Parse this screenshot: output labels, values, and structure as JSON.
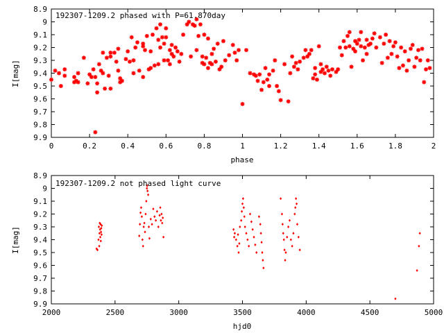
{
  "chart_data": [
    {
      "type": "scatter",
      "title": "192307-1209.2 phased with P=61.870day",
      "xlabel": "phase",
      "ylabel": "I[mag]",
      "xlim": [
        0,
        2
      ],
      "ylim": [
        9.9,
        8.9
      ],
      "y_inverted": true,
      "marker": "star",
      "color": "#ff0000",
      "xticks": [
        "0",
        "0.2",
        "0.4",
        "0.6",
        "0.8",
        "1",
        "1.2",
        "1.4",
        "1.6",
        "1.8",
        "2"
      ],
      "xtick_values": [
        0,
        0.2,
        0.4,
        0.6,
        0.8,
        1,
        1.2,
        1.4,
        1.6,
        1.8,
        2
      ],
      "yticks": [
        "8.9",
        "9",
        "9.1",
        "9.2",
        "9.3",
        "9.4",
        "9.5",
        "9.6",
        "9.7",
        "9.8",
        "9.9"
      ],
      "ytick_values": [
        8.9,
        9.0,
        9.1,
        9.2,
        9.3,
        9.4,
        9.5,
        9.6,
        9.7,
        9.8,
        9.9
      ],
      "points": [
        [
          0.0,
          9.45
        ],
        [
          0.02,
          9.38
        ],
        [
          0.04,
          9.4
        ],
        [
          0.05,
          9.5
        ],
        [
          0.07,
          9.37
        ],
        [
          0.07,
          9.42
        ],
        [
          0.12,
          9.43
        ],
        [
          0.12,
          9.47
        ],
        [
          0.13,
          9.46
        ],
        [
          0.14,
          9.4
        ],
        [
          0.14,
          9.47
        ],
        [
          0.17,
          9.28
        ],
        [
          0.19,
          9.48
        ],
        [
          0.2,
          9.41
        ],
        [
          0.21,
          9.43
        ],
        [
          0.22,
          9.37
        ],
        [
          0.23,
          9.43
        ],
        [
          0.23,
          9.86
        ],
        [
          0.24,
          9.55
        ],
        [
          0.24,
          9.48
        ],
        [
          0.25,
          9.33
        ],
        [
          0.26,
          9.38
        ],
        [
          0.27,
          9.24
        ],
        [
          0.27,
          9.4
        ],
        [
          0.28,
          9.52
        ],
        [
          0.29,
          9.28
        ],
        [
          0.3,
          9.42
        ],
        [
          0.31,
          9.52
        ],
        [
          0.31,
          9.27
        ],
        [
          0.31,
          9.24
        ],
        [
          0.33,
          9.24
        ],
        [
          0.34,
          9.31
        ],
        [
          0.35,
          9.21
        ],
        [
          0.35,
          9.38
        ],
        [
          0.36,
          9.47
        ],
        [
          0.36,
          9.44
        ],
        [
          0.37,
          9.46
        ],
        [
          0.39,
          9.29
        ],
        [
          0.4,
          9.23
        ],
        [
          0.41,
          9.31
        ],
        [
          0.42,
          9.12
        ],
        [
          0.43,
          9.3
        ],
        [
          0.43,
          9.4
        ],
        [
          0.44,
          9.2
        ],
        [
          0.45,
          9.16
        ],
        [
          0.46,
          9.38
        ],
        [
          0.48,
          9.19
        ],
        [
          0.48,
          9.17
        ],
        [
          0.48,
          9.43
        ],
        [
          0.49,
          9.22
        ],
        [
          0.5,
          9.11
        ],
        [
          0.51,
          9.37
        ],
        [
          0.52,
          9.23
        ],
        [
          0.52,
          9.36
        ],
        [
          0.53,
          9.1
        ],
        [
          0.54,
          9.34
        ],
        [
          0.55,
          9.05
        ],
        [
          0.56,
          9.14
        ],
        [
          0.56,
          9.33
        ],
        [
          0.57,
          9.02
        ],
        [
          0.57,
          9.2
        ],
        [
          0.58,
          9.12
        ],
        [
          0.59,
          9.17
        ],
        [
          0.59,
          9.3
        ],
        [
          0.6,
          9.05
        ],
        [
          0.6,
          9.12
        ],
        [
          0.61,
          9.3
        ],
        [
          0.62,
          9.22
        ],
        [
          0.62,
          9.33
        ],
        [
          0.63,
          9.18
        ],
        [
          0.63,
          9.25
        ],
        [
          0.64,
          9.27
        ],
        [
          0.65,
          9.2
        ],
        [
          0.66,
          9.23
        ],
        [
          0.67,
          9.31
        ],
        [
          0.68,
          9.25
        ],
        [
          0.69,
          9.1
        ],
        [
          0.71,
          9.02
        ],
        [
          0.72,
          9.0
        ],
        [
          0.73,
          9.27
        ],
        [
          0.74,
          9.02
        ],
        [
          0.75,
          9.03
        ],
        [
          0.76,
          8.98
        ],
        [
          0.76,
          9.22
        ],
        [
          0.77,
          9.11
        ],
        [
          0.78,
          9.02
        ],
        [
          0.79,
          9.27
        ],
        [
          0.79,
          9.32
        ],
        [
          0.8,
          9.33
        ],
        [
          0.8,
          9.1
        ],
        [
          0.81,
          9.28
        ],
        [
          0.82,
          9.13
        ],
        [
          0.82,
          9.36
        ],
        [
          0.83,
          9.32
        ],
        [
          0.84,
          9.25
        ],
        [
          0.84,
          9.33
        ],
        [
          0.85,
          9.21
        ],
        [
          0.86,
          9.31
        ],
        [
          0.87,
          9.17
        ],
        [
          0.88,
          9.37
        ],
        [
          0.89,
          9.35
        ],
        [
          0.9,
          9.15
        ],
        [
          0.91,
          9.3
        ],
        [
          0.93,
          9.26
        ],
        [
          0.95,
          9.18
        ],
        [
          0.96,
          9.24
        ],
        [
          0.97,
          9.3
        ],
        [
          0.98,
          9.22
        ],
        [
          1.0,
          9.64
        ],
        [
          1.02,
          9.22
        ],
        [
          1.04,
          9.4
        ],
        [
          1.06,
          9.41
        ],
        [
          1.07,
          9.42
        ],
        [
          1.08,
          9.46
        ],
        [
          1.09,
          9.41
        ],
        [
          1.1,
          9.53
        ],
        [
          1.11,
          9.47
        ],
        [
          1.12,
          9.36
        ],
        [
          1.13,
          9.45
        ],
        [
          1.14,
          9.5
        ],
        [
          1.14,
          9.41
        ],
        [
          1.16,
          9.38
        ],
        [
          1.17,
          9.3
        ],
        [
          1.18,
          9.5
        ],
        [
          1.19,
          9.54
        ],
        [
          1.2,
          9.61
        ],
        [
          1.22,
          9.33
        ],
        [
          1.24,
          9.62
        ],
        [
          1.25,
          9.4
        ],
        [
          1.26,
          9.27
        ],
        [
          1.27,
          9.35
        ],
        [
          1.28,
          9.32
        ],
        [
          1.29,
          9.37
        ],
        [
          1.3,
          9.31
        ],
        [
          1.32,
          9.28
        ],
        [
          1.33,
          9.22
        ],
        [
          1.34,
          9.27
        ],
        [
          1.35,
          9.25
        ],
        [
          1.36,
          9.22
        ],
        [
          1.37,
          9.44
        ],
        [
          1.38,
          9.36
        ],
        [
          1.38,
          9.41
        ],
        [
          1.39,
          9.45
        ],
        [
          1.4,
          9.19
        ],
        [
          1.41,
          9.33
        ],
        [
          1.41,
          9.39
        ],
        [
          1.42,
          9.37
        ],
        [
          1.43,
          9.4
        ],
        [
          1.44,
          9.35
        ],
        [
          1.45,
          9.38
        ],
        [
          1.46,
          9.42
        ],
        [
          1.47,
          9.37
        ],
        [
          1.49,
          9.39
        ],
        [
          1.5,
          9.37
        ],
        [
          1.51,
          9.2
        ],
        [
          1.52,
          9.26
        ],
        [
          1.53,
          9.15
        ],
        [
          1.54,
          9.2
        ],
        [
          1.55,
          9.11
        ],
        [
          1.56,
          9.19
        ],
        [
          1.56,
          9.08
        ],
        [
          1.57,
          9.35
        ],
        [
          1.58,
          9.21
        ],
        [
          1.59,
          9.15
        ],
        [
          1.59,
          9.23
        ],
        [
          1.6,
          9.17
        ],
        [
          1.61,
          9.14
        ],
        [
          1.62,
          9.19
        ],
        [
          1.62,
          9.08
        ],
        [
          1.63,
          9.3
        ],
        [
          1.64,
          9.2
        ],
        [
          1.65,
          9.25
        ],
        [
          1.65,
          9.14
        ],
        [
          1.66,
          9.18
        ],
        [
          1.67,
          9.17
        ],
        [
          1.68,
          9.13
        ],
        [
          1.69,
          9.09
        ],
        [
          1.7,
          9.2
        ],
        [
          1.72,
          9.12
        ],
        [
          1.73,
          9.32
        ],
        [
          1.74,
          9.17
        ],
        [
          1.75,
          9.1
        ],
        [
          1.76,
          9.28
        ],
        [
          1.77,
          9.15
        ],
        [
          1.78,
          9.25
        ],
        [
          1.79,
          9.19
        ],
        [
          1.8,
          9.16
        ],
        [
          1.81,
          9.27
        ],
        [
          1.82,
          9.36
        ],
        [
          1.83,
          9.2
        ],
        [
          1.84,
          9.34
        ],
        [
          1.85,
          9.23
        ],
        [
          1.86,
          9.38
        ],
        [
          1.87,
          9.3
        ],
        [
          1.88,
          9.21
        ],
        [
          1.89,
          9.18
        ],
        [
          1.9,
          9.35
        ],
        [
          1.91,
          9.28
        ],
        [
          1.92,
          9.22
        ],
        [
          1.93,
          9.3
        ],
        [
          1.94,
          9.21
        ],
        [
          1.95,
          9.47
        ],
        [
          1.96,
          9.37
        ],
        [
          1.97,
          9.3
        ],
        [
          1.98,
          9.36
        ]
      ]
    },
    {
      "type": "scatter",
      "title": "192307-1209.2 not phased light curve",
      "xlabel": "hjd0",
      "ylabel": "I[mag]",
      "xlim": [
        2000,
        5000
      ],
      "ylim": [
        9.9,
        8.9
      ],
      "y_inverted": true,
      "marker": "diamond",
      "color": "#ff0000",
      "xticks": [
        "2000",
        "2500",
        "3000",
        "3500",
        "4000",
        "4500",
        "5000"
      ],
      "xtick_values": [
        2000,
        2500,
        3000,
        3500,
        4000,
        4500,
        5000
      ],
      "yticks": [
        "8.9",
        "9",
        "9.1",
        "9.2",
        "9.3",
        "9.4",
        "9.5",
        "9.6",
        "9.7",
        "9.8",
        "9.9"
      ],
      "ytick_values": [
        8.9,
        9.0,
        9.1,
        9.2,
        9.3,
        9.4,
        9.5,
        9.6,
        9.7,
        9.8,
        9.9
      ],
      "points": [
        [
          2355,
          9.47
        ],
        [
          2362,
          9.48
        ],
        [
          2370,
          9.4
        ],
        [
          2373,
          9.3
        ],
        [
          2376,
          9.45
        ],
        [
          2378,
          9.35
        ],
        [
          2380,
          9.27
        ],
        [
          2382,
          9.32
        ],
        [
          2384,
          9.38
        ],
        [
          2386,
          9.28
        ],
        [
          2388,
          9.41
        ],
        [
          2390,
          9.34
        ],
        [
          2392,
          9.31
        ],
        [
          2394,
          9.36
        ],
        [
          2396,
          9.29
        ],
        [
          2690,
          9.37
        ],
        [
          2695,
          9.28
        ],
        [
          2700,
          9.19
        ],
        [
          2705,
          9.15
        ],
        [
          2710,
          9.22
        ],
        [
          2715,
          9.4
        ],
        [
          2720,
          9.45
        ],
        [
          2725,
          9.3
        ],
        [
          2730,
          9.27
        ],
        [
          2735,
          9.34
        ],
        [
          2740,
          9.2
        ],
        [
          2745,
          9.1
        ],
        [
          2750,
          9.0
        ],
        [
          2752,
          8.98
        ],
        [
          2755,
          9.02
        ],
        [
          2760,
          9.05
        ],
        [
          2765,
          9.3
        ],
        [
          2770,
          9.39
        ],
        [
          2780,
          9.24
        ],
        [
          2790,
          9.28
        ],
        [
          2800,
          9.16
        ],
        [
          2810,
          9.22
        ],
        [
          2820,
          9.25
        ],
        [
          2830,
          9.18
        ],
        [
          2840,
          9.3
        ],
        [
          2850,
          9.21
        ],
        [
          2855,
          9.15
        ],
        [
          2860,
          9.25
        ],
        [
          2865,
          9.2
        ],
        [
          2870,
          9.27
        ],
        [
          2875,
          9.23
        ],
        [
          2880,
          9.38
        ],
        [
          3430,
          9.32
        ],
        [
          3435,
          9.38
        ],
        [
          3440,
          9.35
        ],
        [
          3450,
          9.4
        ],
        [
          3460,
          9.45
        ],
        [
          3465,
          9.36
        ],
        [
          3470,
          9.5
        ],
        [
          3475,
          9.43
        ],
        [
          3480,
          9.3
        ],
        [
          3490,
          9.25
        ],
        [
          3495,
          9.18
        ],
        [
          3500,
          9.12
        ],
        [
          3505,
          9.08
        ],
        [
          3510,
          9.15
        ],
        [
          3515,
          9.22
        ],
        [
          3520,
          9.3
        ],
        [
          3530,
          9.35
        ],
        [
          3540,
          9.4
        ],
        [
          3550,
          9.45
        ],
        [
          3560,
          9.2
        ],
        [
          3570,
          9.26
        ],
        [
          3580,
          9.32
        ],
        [
          3590,
          9.38
        ],
        [
          3600,
          9.44
        ],
        [
          3610,
          9.5
        ],
        [
          3630,
          9.22
        ],
        [
          3640,
          9.28
        ],
        [
          3645,
          9.35
        ],
        [
          3650,
          9.42
        ],
        [
          3655,
          9.5
        ],
        [
          3660,
          9.56
        ],
        [
          3665,
          9.62
        ],
        [
          3800,
          9.08
        ],
        [
          3810,
          9.2
        ],
        [
          3815,
          9.28
        ],
        [
          3820,
          9.35
        ],
        [
          3825,
          9.4
        ],
        [
          3830,
          9.48
        ],
        [
          3835,
          9.56
        ],
        [
          3840,
          9.5
        ],
        [
          3850,
          9.38
        ],
        [
          3860,
          9.3
        ],
        [
          3870,
          9.25
        ],
        [
          3880,
          9.4
        ],
        [
          3890,
          9.45
        ],
        [
          3900,
          9.35
        ],
        [
          3910,
          9.2
        ],
        [
          3915,
          9.15
        ],
        [
          3920,
          9.08
        ],
        [
          3925,
          9.12
        ],
        [
          3930,
          9.28
        ],
        [
          3940,
          9.38
        ],
        [
          3950,
          9.48
        ],
        [
          4700,
          9.86
        ],
        [
          4870,
          9.64
        ],
        [
          4885,
          9.45
        ],
        [
          4892,
          9.35
        ]
      ]
    }
  ]
}
